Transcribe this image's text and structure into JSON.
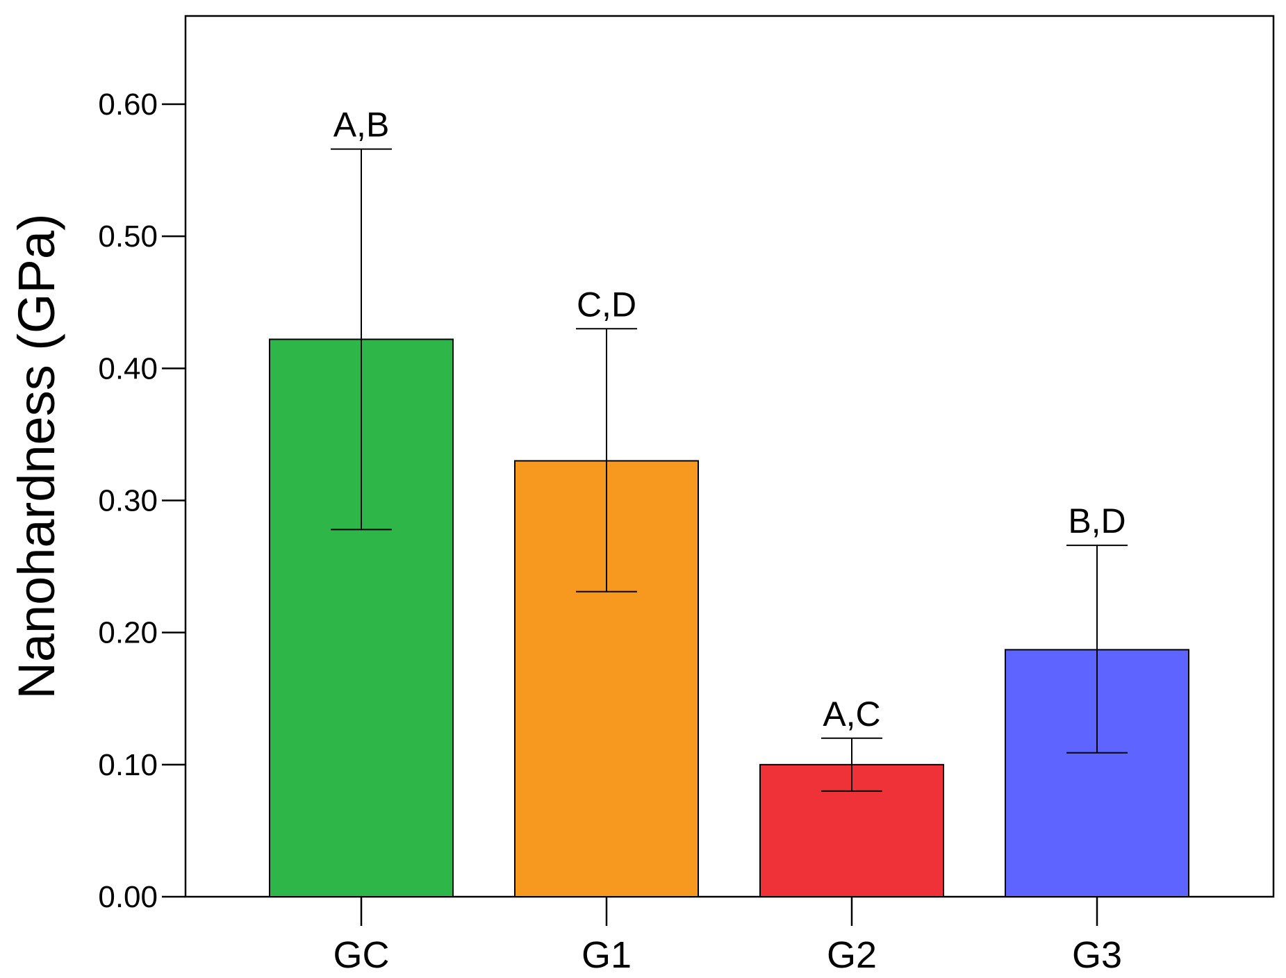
{
  "chart_data": {
    "type": "bar",
    "title": "",
    "xlabel": "",
    "ylabel": "Nanohardness (GPa)",
    "categories": [
      "GC",
      "G1",
      "G2",
      "G3"
    ],
    "values": [
      0.422,
      0.33,
      0.1,
      0.187
    ],
    "error_upper": [
      0.566,
      0.43,
      0.12,
      0.266
    ],
    "error_lower": [
      0.278,
      0.231,
      0.08,
      0.109
    ],
    "significance_labels": [
      "A,B",
      "C,D",
      "A,C",
      "B,D"
    ],
    "colors": [
      "#2eb648",
      "#f7991f",
      "#ef3238",
      "#5d64ff"
    ],
    "ylim": [
      0,
      0.6
    ],
    "yticks": [
      "0.00",
      "0.10",
      "0.20",
      "0.30",
      "0.40",
      "0.50",
      "0.60"
    ],
    "grid": false,
    "legend": "none"
  }
}
